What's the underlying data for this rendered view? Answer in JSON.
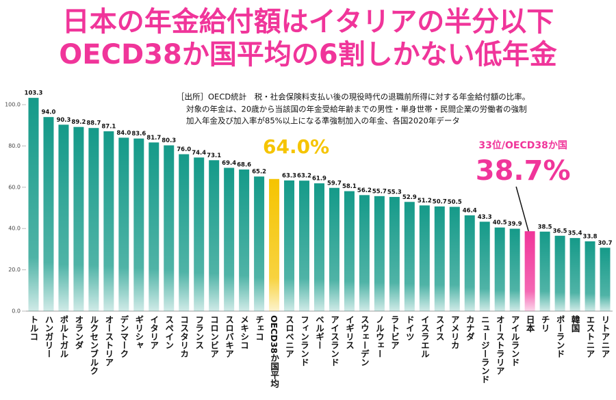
{
  "chart_data": {
    "type": "bar",
    "title": [
      "日本の年金給付額はイタリアの半分以下",
      "OECD38か国平均の6割しかない低年金"
    ],
    "note": [
      "［出所］OECD統計　税・社会保険料支払い後の現役時代の退職前所得に対する年金給付額の比率。",
      "対象の年金は、20歳から当該国の年金受給年齢までの男性・単身世帯・民間企業の労働者の強制",
      "加入年金及び加入率が85%以上になる準強制加入の年金、各国2020年データ"
    ],
    "categories": [
      "トルコ",
      "ハンガリー",
      "ポルトガル",
      "オランダ",
      "ルクセンブルク",
      "オーストリア",
      "デンマーク",
      "ギリシャ",
      "イタリア",
      "スペイン",
      "コスタリカ",
      "フランス",
      "コロンビア",
      "スロバキア",
      "メキシコ",
      "チェコ",
      "OECD38か国平均",
      "スロベニア",
      "フィンランド",
      "ベルギー",
      "アイスランド",
      "イギリス",
      "スウェーデン",
      "ノルウェー",
      "ラトビア",
      "ドイツ",
      "イスラエル",
      "スイス",
      "アメリカ",
      "カナダ",
      "ニュージーランド",
      "オーストラリア",
      "アイルランド",
      "日本",
      "チリ",
      "ポーランド",
      "韓国",
      "エストニア",
      "リトアニア"
    ],
    "values": [
      103.3,
      94,
      90.3,
      89.2,
      88.7,
      87.1,
      84,
      83.6,
      81.7,
      80.3,
      76,
      74.4,
      73.1,
      69.4,
      68.6,
      65.2,
      64,
      63.3,
      63.2,
      61.9,
      59.7,
      58.1,
      56.2,
      55.7,
      55.3,
      52.9,
      51.2,
      50.7,
      50.5,
      46.4,
      43.3,
      40.5,
      39.9,
      38.7,
      38.5,
      36.5,
      35.4,
      33.8,
      30.7
    ],
    "value_labels": [
      "103.3",
      "94.0",
      "90.3",
      "89.2",
      "88.7",
      "87.1",
      "84.0",
      "83.6",
      "81.7",
      "80.3",
      "76.0",
      "74.4",
      "73.1",
      "69.4",
      "68.6",
      "65.2",
      "64.0%",
      "63.3",
      "63.2",
      "61.9",
      "59.7",
      "58.1",
      "56.2",
      "55.7",
      "55.3",
      "52.9",
      "51.2",
      "50.7",
      "50.5",
      "46.4",
      "43.3",
      "40.5",
      "39.9",
      "38.7%",
      "38.5",
      "36.5",
      "35.4",
      "33.8",
      "30.7"
    ],
    "color": "#159a89",
    "colors": [
      "#159a89",
      "#159a89",
      "#159a89",
      "#159a89",
      "#159a89",
      "#159a89",
      "#159a89",
      "#159a89",
      "#159a89",
      "#159a89",
      "#159a89",
      "#159a89",
      "#159a89",
      "#159a89",
      "#159a89",
      "#159a89",
      "#f5c400",
      "#159a89",
      "#159a89",
      "#159a89",
      "#159a89",
      "#159a89",
      "#159a89",
      "#159a89",
      "#159a89",
      "#159a89",
      "#159a89",
      "#159a89",
      "#159a89",
      "#159a89",
      "#159a89",
      "#159a89",
      "#159a89",
      "#f0359a",
      "#159a89",
      "#159a89",
      "#159a89",
      "#159a89",
      "#159a89"
    ],
    "annotations": [
      {
        "text": "33位/OECD38か国"
      }
    ],
    "ylim": [
      0,
      104
    ],
    "yticks": [
      {
        "value": 0,
        "label": "0.0"
      },
      {
        "value": 20,
        "label": "20.0"
      },
      {
        "value": 40,
        "label": "40.0"
      },
      {
        "value": 60,
        "label": "60.0"
      },
      {
        "value": 80,
        "label": "80.0"
      },
      {
        "value": 100,
        "label": "100.0"
      }
    ],
    "grid": false
  }
}
